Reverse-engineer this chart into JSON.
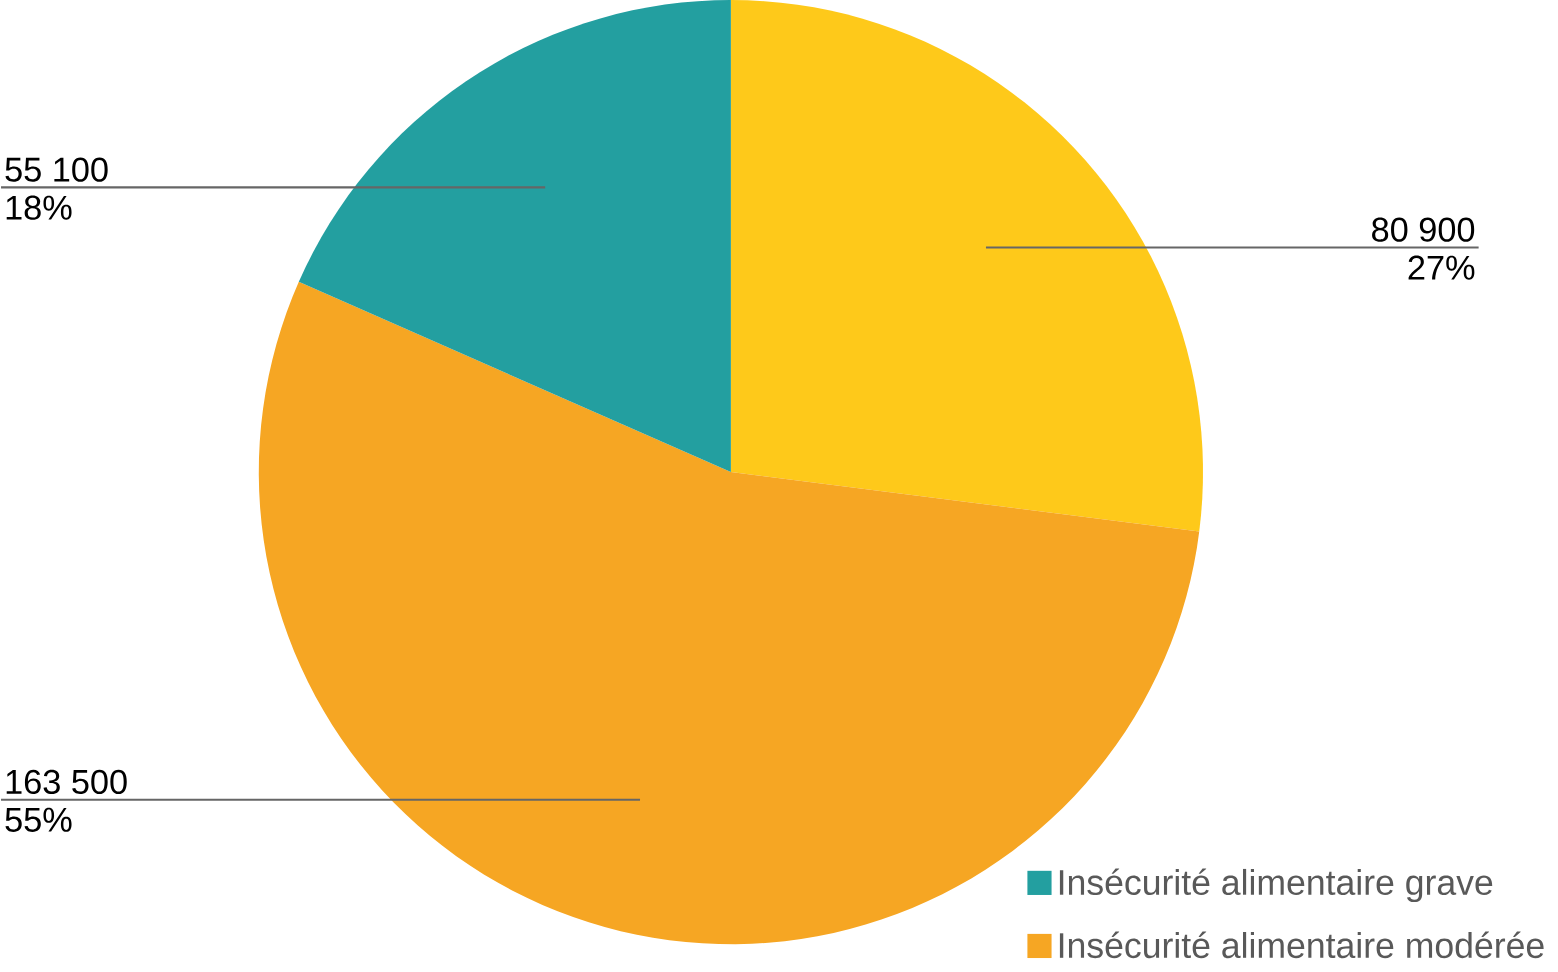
{
  "chart_data": {
    "type": "pie",
    "categories": [
      null,
      "Insécurité alimentaire modérée",
      "Insécurité alimentaire grave"
    ],
    "values": [
      80900,
      163500,
      55100
    ],
    "colors": [
      "#fec91a",
      "#f6a623",
      "#239fa0"
    ],
    "value_labels": [
      "80 900",
      "163 500",
      "55 100"
    ],
    "annotations": [
      "27%",
      "55%",
      "18%"
    ],
    "legend": "bottom right"
  }
}
